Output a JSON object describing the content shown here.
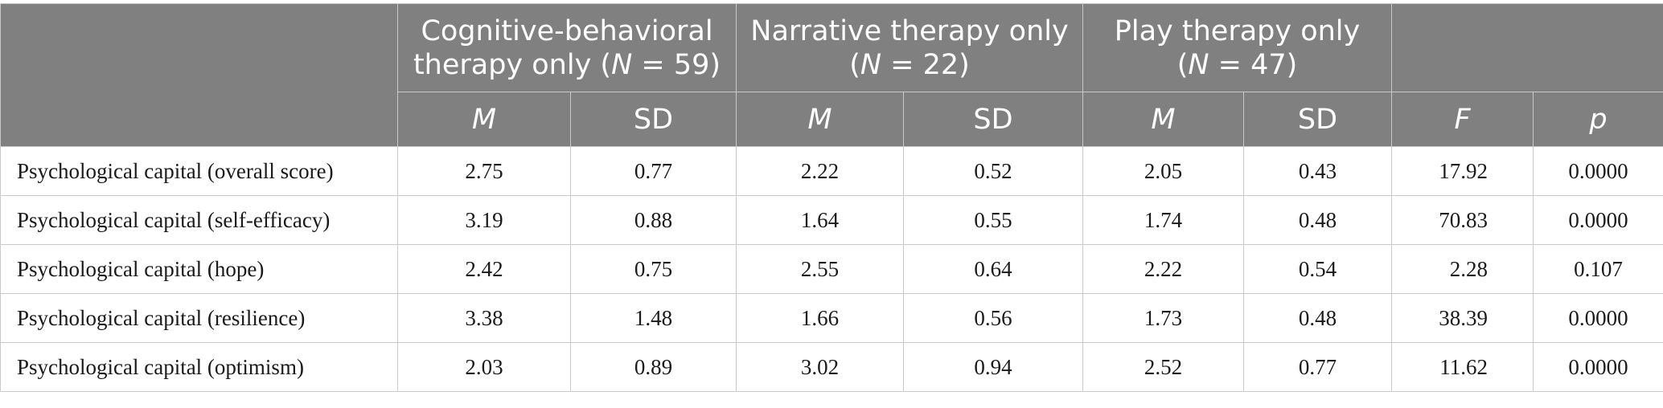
{
  "table": {
    "groups": [
      {
        "line1": "Cognitive-behavioral",
        "line2_pre": "therapy only (",
        "n_symbol": "N",
        "n_value": " = 59)"
      },
      {
        "line1": "Narrative therapy only",
        "line2_pre": "(",
        "n_symbol": "N",
        "n_value": " = 22)"
      },
      {
        "line1": "Play therapy only",
        "line2_pre": "(",
        "n_symbol": "N",
        "n_value": " = 47)"
      }
    ],
    "stat_headers": [
      "M",
      "SD",
      "M",
      "SD",
      "M",
      "SD",
      "F",
      "p"
    ],
    "rows": [
      {
        "label": "Psychological capital (overall score)",
        "values": [
          "2.75",
          "0.77",
          "2.22",
          "0.52",
          "2.05",
          "0.43",
          "17.92",
          "0.0000"
        ]
      },
      {
        "label": "Psychological capital (self-efficacy)",
        "values": [
          "3.19",
          "0.88",
          "1.64",
          "0.55",
          "1.74",
          "0.48",
          "70.83",
          "0.0000"
        ]
      },
      {
        "label": "Psychological capital (hope)",
        "values": [
          "2.42",
          "0.75",
          "2.55",
          "0.64",
          "2.22",
          "0.54",
          "2.28",
          "0.107"
        ]
      },
      {
        "label": "Psychological capital (resilience)",
        "values": [
          "3.38",
          "1.48",
          "1.66",
          "0.56",
          "1.73",
          "0.48",
          "38.39",
          "0.0000"
        ]
      },
      {
        "label": "Psychological capital (optimism)",
        "values": [
          "2.03",
          "0.89",
          "3.02",
          "0.94",
          "2.52",
          "0.77",
          "11.62",
          "0.0000"
        ]
      }
    ]
  }
}
